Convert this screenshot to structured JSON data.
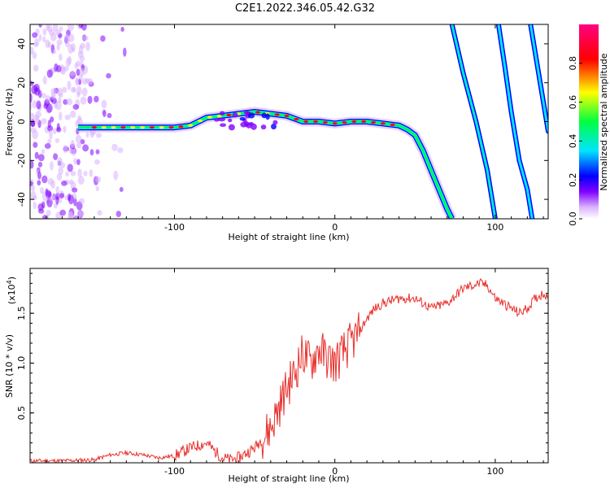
{
  "figure_title": "C2E1.2022.346.05.42.G32",
  "chart_data": [
    {
      "type": "heatmap",
      "xlabel": "Height of straight line (km)",
      "ylabel": "Frequency (Hz)",
      "xlim": [
        -190,
        133
      ],
      "ylim": [
        -50,
        50
      ],
      "xticks": [
        -100,
        0,
        100
      ],
      "yticks": [
        -40,
        -20,
        0,
        20,
        40
      ],
      "colorbar": {
        "label": "Normalized spectral amplitude",
        "range": [
          0.0,
          1.0
        ],
        "ticks": [
          0.0,
          0.2,
          0.4,
          0.6,
          0.8
        ],
        "tick_labels": [
          "0.0",
          "0.2",
          "0.4",
          "0.6",
          "0.8"
        ],
        "colormap": [
          "#ffffff",
          "#d9b3ff",
          "#8000ff",
          "#0000ff",
          "#00e5ff",
          "#00ff40",
          "#ffff00",
          "#ff0000",
          "#ff0080"
        ]
      },
      "main_trace": {
        "x": [
          -160,
          -140,
          -120,
          -100,
          -90,
          -80,
          -70,
          -60,
          -50,
          -40,
          -30,
          -20,
          -10,
          0,
          10,
          20,
          30,
          40,
          45,
          50,
          55,
          60,
          65,
          70,
          73
        ],
        "y": [
          -3,
          -3,
          -3,
          -3,
          -2,
          2,
          3,
          4,
          5,
          4,
          3,
          0,
          0,
          -1,
          0,
          0,
          -1,
          -2,
          -4,
          -7,
          -15,
          -25,
          -35,
          -45,
          -50
        ]
      },
      "aliased_traces": [
        {
          "x": [
            73,
            80,
            88,
            95,
            100
          ],
          "y": [
            50,
            25,
            0,
            -25,
            -50
          ]
        },
        {
          "x": [
            102,
            106,
            110,
            115,
            120,
            123
          ],
          "y": [
            50,
            28,
            5,
            -20,
            -35,
            -50
          ]
        },
        {
          "x": [
            122,
            126,
            130,
            133
          ],
          "y": [
            50,
            30,
            10,
            -5
          ]
        }
      ]
    },
    {
      "type": "line",
      "xlabel": "Height of straight line (km)",
      "ylabel": "SNR (10 * v/v)",
      "exponent_label": "(x10",
      "exponent_power": "4",
      "exponent_close": ")",
      "xlim": [
        -190,
        133
      ],
      "ylim": [
        0,
        1.95
      ],
      "xticks": [
        -100,
        0,
        100
      ],
      "yticks": [
        0.5,
        1.0,
        1.5
      ],
      "ytick_labels": [
        "0.5",
        "1.0",
        "1.5"
      ],
      "color": "#e8302c",
      "series": [
        {
          "x": [
            -190,
            -170,
            -150,
            -140,
            -130,
            -120,
            -110,
            -100,
            -90,
            -80,
            -75,
            -70,
            -65,
            -60,
            -55,
            -50,
            -45,
            -40,
            -35,
            -30,
            -25,
            -20,
            -15,
            -10,
            -5,
            0,
            5,
            10,
            15,
            20,
            25,
            30,
            40,
            50,
            60,
            70,
            80,
            90,
            95,
            100,
            110,
            115,
            120,
            125,
            130,
            133
          ],
          "y": [
            0.02,
            0.02,
            0.03,
            0.08,
            0.1,
            0.08,
            0.05,
            0.07,
            0.15,
            0.2,
            0.12,
            0.05,
            0.03,
            0.05,
            0.1,
            0.15,
            0.25,
            0.35,
            0.55,
            0.75,
            0.9,
            1.1,
            1.0,
            1.15,
            1.05,
            1.0,
            1.1,
            1.2,
            1.3,
            1.45,
            1.55,
            1.6,
            1.65,
            1.65,
            1.55,
            1.6,
            1.75,
            1.8,
            1.78,
            1.65,
            1.55,
            1.5,
            1.55,
            1.65,
            1.7,
            1.68
          ]
        }
      ]
    }
  ]
}
